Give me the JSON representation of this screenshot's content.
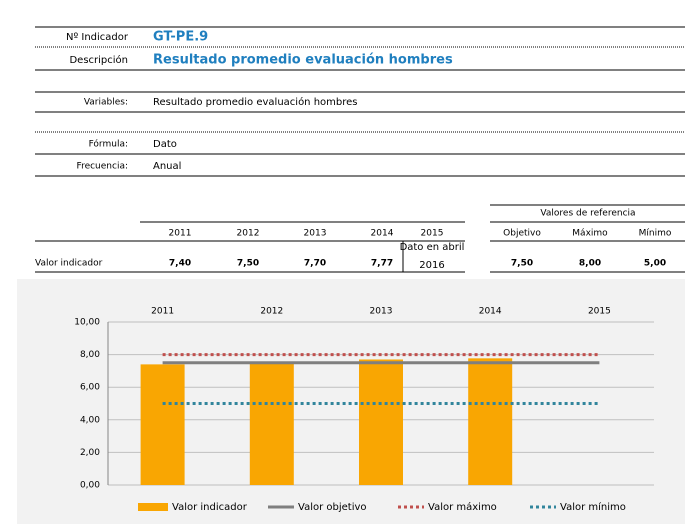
{
  "fields": [
    {
      "label": "Nº Indicador",
      "value": "GT-PE.9"
    },
    {
      "label": "Descripción",
      "value": "Resultado promedio evaluación hombres"
    },
    {
      "label": "Variables:",
      "value": "Resultado promedio evaluación hombres"
    },
    {
      "label": "Fórmula:",
      "value": "Dato"
    },
    {
      "label": "Frecuencia:",
      "value": "Anual"
    }
  ],
  "table": {
    "row_label": "Valor indicador",
    "years": [
      "2011",
      "2012",
      "2013",
      "2014",
      "2015"
    ],
    "values": [
      "7,40",
      "7,50",
      "7,70",
      "7,77"
    ],
    "note": [
      "Dato en abril",
      "2016"
    ],
    "reference_title": "Valores de referencia",
    "reference_headers": [
      "Objetivo",
      "Máximo",
      "Mínimo"
    ],
    "reference_values": [
      "7,50",
      "8,00",
      "5,00"
    ]
  },
  "chart_data": {
    "type": "bar",
    "categories": [
      "2011",
      "2012",
      "2013",
      "2014",
      "2015"
    ],
    "series": [
      {
        "name": "Valor indicador",
        "type": "bar",
        "color": "#f9a602",
        "values": [
          7.4,
          7.5,
          7.7,
          7.77,
          null
        ]
      },
      {
        "name": "Valor objetivo",
        "type": "line",
        "dash": "solid",
        "color": "#7f7f7f",
        "values": [
          7.5,
          7.5,
          7.5,
          7.5,
          7.5
        ]
      },
      {
        "name": "Valor máximo",
        "type": "line",
        "dash": "dotted",
        "color": "#c0504d",
        "values": [
          8,
          8,
          8,
          8,
          8
        ]
      },
      {
        "name": "Valor mínimo",
        "type": "line",
        "dash": "dotted",
        "color": "#31859c",
        "values": [
          5,
          5,
          5,
          5,
          5
        ]
      }
    ],
    "ylim": [
      0,
      10
    ],
    "yticks": [
      {
        "value": 0,
        "label": "0,00"
      },
      {
        "value": 2,
        "label": "2,00"
      },
      {
        "value": 4,
        "label": "4,00"
      },
      {
        "value": 6,
        "label": "6,00"
      },
      {
        "value": 8,
        "label": "8,00"
      },
      {
        "value": 10,
        "label": "10,00"
      }
    ],
    "grid": true
  }
}
